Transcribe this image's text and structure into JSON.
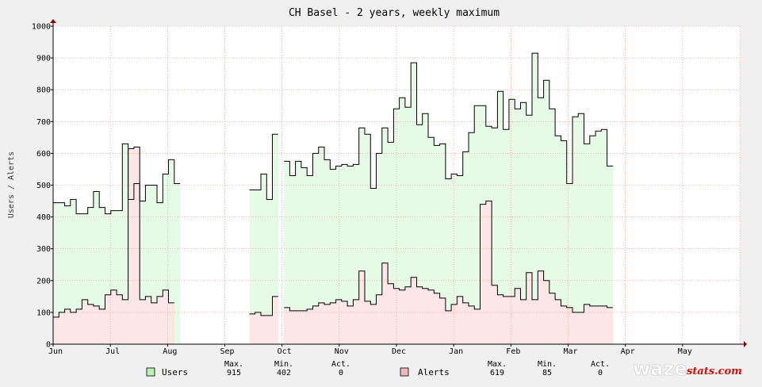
{
  "chart_data": {
    "type": "area",
    "title": "CH Basel - 2 years, weekly maximum",
    "xlabel": "",
    "ylabel": "Users / Alerts",
    "ylim": [
      0,
      1000
    ],
    "yticks": [
      0,
      100,
      200,
      300,
      400,
      500,
      600,
      700,
      800,
      900,
      1000
    ],
    "grid": true,
    "xticks": [
      "Jun",
      "Jul",
      "Aug",
      "Sep",
      "Oct",
      "Nov",
      "Dec",
      "Jan",
      "Feb",
      "Mar",
      "Apr",
      "May"
    ],
    "series": [
      {
        "name": "Users",
        "color": "#000000",
        "fill": "#e6fbe6",
        "values": [
          445,
          445,
          435,
          455,
          410,
          410,
          430,
          480,
          430,
          410,
          420,
          420,
          630,
          455,
          505,
          450,
          500,
          500,
          445,
          535,
          580,
          505,
          null,
          null,
          null,
          null,
          null,
          null,
          null,
          null,
          null,
          null,
          null,
          null,
          485,
          485,
          535,
          455,
          660,
          null,
          575,
          530,
          575,
          555,
          530,
          600,
          620,
          580,
          550,
          560,
          565,
          560,
          565,
          680,
          660,
          490,
          600,
          680,
          635,
          740,
          775,
          745,
          885,
          690,
          725,
          650,
          625,
          630,
          520,
          535,
          530,
          605,
          665,
          750,
          750,
          685,
          680,
          795,
          675,
          770,
          740,
          760,
          720,
          915,
          775,
          830,
          740,
          655,
          640,
          505,
          715,
          725,
          630,
          655,
          670,
          675,
          560,
          null,
          null,
          null,
          null,
          null,
          null,
          null,
          null,
          null,
          null,
          null,
          null,
          null,
          null,
          null,
          null,
          null,
          null,
          null,
          null,
          null,
          null
        ]
      },
      {
        "name": "Alerts",
        "color": "#000000",
        "fill": "#fde6e6",
        "values": [
          85,
          100,
          110,
          100,
          110,
          140,
          125,
          120,
          110,
          155,
          170,
          155,
          140,
          615,
          620,
          140,
          150,
          130,
          150,
          170,
          130,
          null,
          null,
          null,
          null,
          null,
          null,
          null,
          null,
          null,
          null,
          null,
          null,
          null,
          95,
          100,
          90,
          90,
          150,
          null,
          115,
          105,
          105,
          105,
          110,
          120,
          130,
          125,
          130,
          140,
          135,
          120,
          140,
          230,
          135,
          125,
          155,
          255,
          190,
          175,
          170,
          180,
          210,
          180,
          175,
          170,
          160,
          145,
          105,
          125,
          150,
          130,
          120,
          110,
          440,
          450,
          185,
          155,
          150,
          150,
          175,
          140,
          225,
          140,
          230,
          200,
          160,
          140,
          120,
          115,
          100,
          100,
          125,
          120,
          120,
          120,
          115,
          null,
          null,
          null,
          null,
          null,
          null,
          null,
          null,
          null,
          null,
          null,
          null,
          null,
          null,
          null,
          null,
          null,
          null,
          null,
          null,
          null,
          null
        ]
      }
    ],
    "legend": {
      "position": "bottom",
      "headers": [
        "Max.",
        "Min.",
        "Act."
      ],
      "entries": [
        {
          "name": "Users",
          "swatch": "#b8f0b8",
          "max": "915",
          "min": "402",
          "act": "0"
        },
        {
          "name": "Alerts",
          "swatch": "#f0b8b8",
          "max": "619",
          "min": "85",
          "act": "0"
        }
      ]
    }
  },
  "logo": {
    "part1": "waze",
    "part2": "stats.com"
  }
}
